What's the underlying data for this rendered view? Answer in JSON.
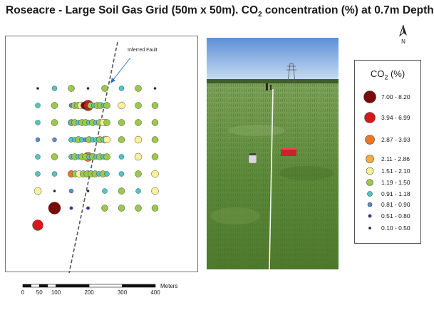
{
  "title": {
    "prefix": "Roseacre - Large Soil Gas Grid (50m x 50m). CO",
    "subscript": "2",
    "suffix": " concentration (%) at 0.7m Depth"
  },
  "north_arrow": {
    "label": "N"
  },
  "map": {
    "fault_label": "Inferred Fault",
    "point_grid": [
      [
        9,
        6,
        5,
        9,
        5,
        6,
        5,
        9
      ],
      [
        6,
        5,
        7,
        1,
        6,
        4,
        5,
        5
      ],
      [
        6,
        5,
        5,
        6,
        5,
        5,
        5,
        5
      ],
      [
        7,
        7,
        6,
        6,
        4,
        5,
        4,
        5
      ],
      [
        6,
        5,
        6,
        2,
        6,
        6,
        4,
        5
      ],
      [
        6,
        6,
        7,
        5,
        6,
        6,
        5,
        4
      ],
      [
        4,
        9,
        7,
        9,
        6,
        5,
        6,
        4
      ],
      [
        null,
        0,
        8,
        8,
        5,
        5,
        5,
        5
      ],
      [
        1,
        null,
        null,
        null,
        null,
        null,
        null,
        null
      ]
    ],
    "dense_traverses": [
      {
        "row": 1,
        "colors": [
          7,
          5,
          5,
          4,
          0,
          1,
          5,
          6,
          5,
          5,
          6,
          5
        ]
      },
      {
        "row": 2,
        "colors": [
          6,
          5,
          6,
          5,
          5,
          6,
          5,
          6,
          5,
          4,
          5
        ]
      },
      {
        "row": 3,
        "colors": [
          6,
          6,
          5,
          6,
          7,
          5,
          6,
          6,
          5,
          6,
          4
        ]
      },
      {
        "row": 4,
        "colors": [
          6,
          5,
          6,
          5,
          5,
          6,
          5,
          6,
          5,
          6,
          5
        ]
      },
      {
        "row": 5,
        "colors": [
          2,
          5,
          4,
          5,
          5,
          5,
          5,
          6,
          5,
          6
        ]
      }
    ]
  },
  "legend": {
    "title_prefix": "CO",
    "title_subscript": "2",
    "title_suffix": " (%)",
    "classes": [
      {
        "label": "7.00 - 8.20",
        "color": "#7a0a0a"
      },
      {
        "label": "3.94 - 6.99",
        "color": "#d8171b"
      },
      {
        "label": "2.87 - 3.93",
        "color": "#f0761f"
      },
      {
        "label": "2.11 - 2.86",
        "color": "#f9ab3b"
      },
      {
        "label": "1.51 - 2.10",
        "color": "#fbf19a"
      },
      {
        "label": "1.19 - 1.50",
        "color": "#9bc94a"
      },
      {
        "label": "0.91 - 1.18",
        "color": "#4fc7c3"
      },
      {
        "label": "0.81 - 0.90",
        "color": "#5b8cd8"
      },
      {
        "label": "0.51 - 0.80",
        "color": "#3636b0"
      },
      {
        "label": "0.10 - 0.50",
        "color": "#1a1a5a"
      }
    ]
  },
  "scale_bar": {
    "unit": "Meters",
    "ticks": [
      "0",
      "50",
      "100",
      "200",
      "300",
      "400"
    ]
  }
}
